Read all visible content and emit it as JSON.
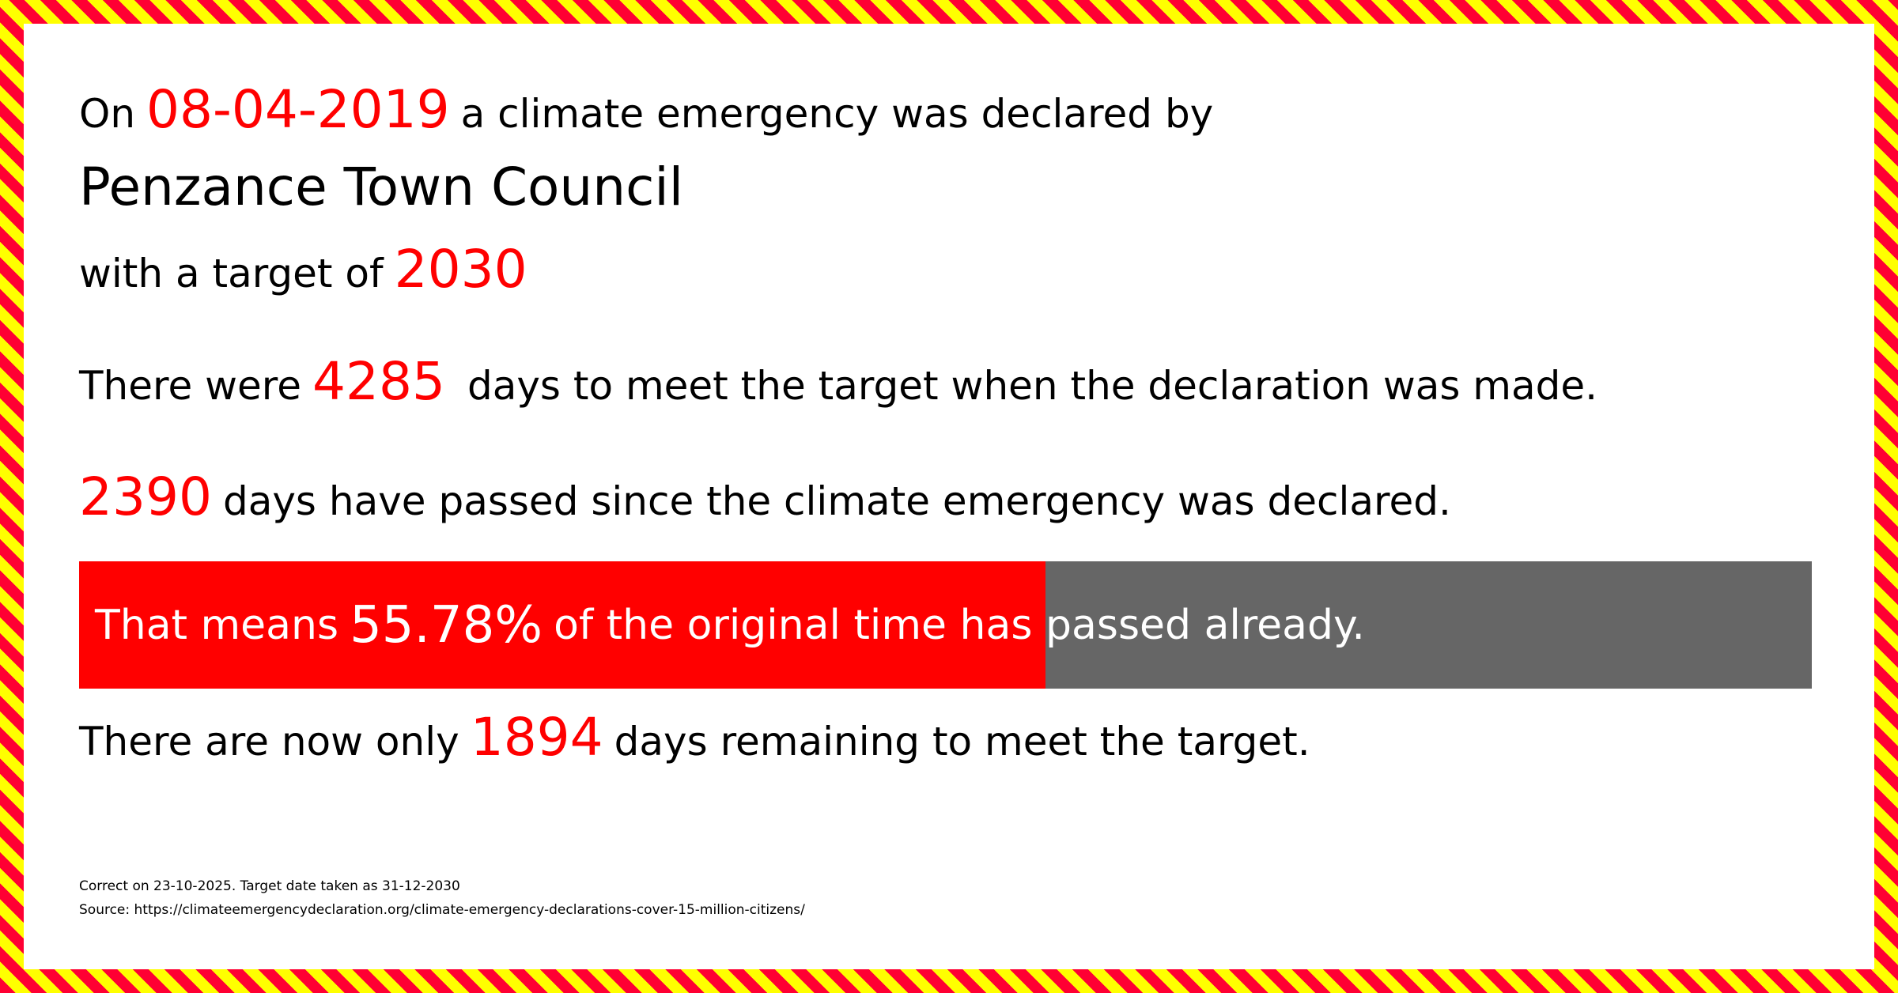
{
  "colors": {
    "accent": "#ff0000",
    "bar_remaining": "#666666",
    "border_stripe_1": "#ff0033",
    "border_stripe_2": "#ffff00"
  },
  "line1": {
    "prefix": "On",
    "date": "08-04-2019",
    "suffix": "a climate emergency was declared by"
  },
  "council": "Penzance Town Council",
  "line3": {
    "prefix": "with a target of",
    "year": "2030"
  },
  "line4": {
    "prefix": "There were",
    "days": "4285",
    "suffix": "days to meet the target when the declaration was made."
  },
  "line5": {
    "days": "2390",
    "suffix": "days have passed since the climate emergency was declared."
  },
  "progress": {
    "prefix": "That means",
    "percent_label": "55.78%",
    "suffix": "of the original time has passed already.",
    "fraction": 0.5578
  },
  "line7": {
    "prefix": "There are now only",
    "days": "1894",
    "suffix": "days remaining to meet the target."
  },
  "footer": {
    "correct": "Correct on 23-10-2025. Target date taken as 31-12-2030",
    "source": "Source: https://climateemergencydeclaration.org/climate-emergency-declarations-cover-15-million-citizens/"
  }
}
